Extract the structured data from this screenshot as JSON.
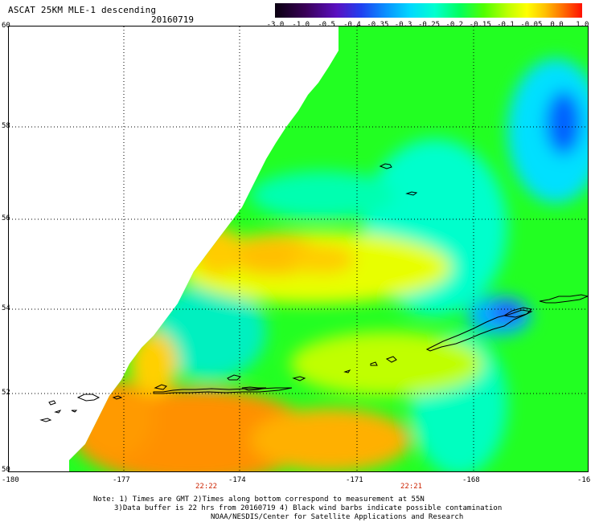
{
  "header": {
    "title": "ASCAT 25KM MLE-1 descending",
    "date": "20160719"
  },
  "colorbar": {
    "ticks": [
      "-3.0",
      "-1.0",
      "-0.5",
      "-0.4",
      "-0.35",
      "-0.3",
      "-0.25",
      "-0.2",
      "-0.15",
      "-0.1",
      "-0.05",
      "0.0",
      "1.0"
    ],
    "colors": [
      "#1a0020",
      "#3a0058",
      "#5a00a0",
      "#2a28e8",
      "#0a78ff",
      "#00c8ff",
      "#00ffe0",
      "#00ff70",
      "#40ff00",
      "#b0ff00",
      "#ffff00",
      "#ffb000",
      "#ff6000",
      "#ff0000"
    ]
  },
  "map": {
    "lat_labels": [
      "60",
      "58",
      "56",
      "54",
      "52",
      "50"
    ],
    "lon_labels": [
      "-180",
      "-177",
      "-174",
      "-171",
      "-168",
      "-16"
    ],
    "time_labels": [
      "22:22",
      "22:21"
    ]
  },
  "notes": {
    "line1": "Note: 1) Times are GMT 2)Times along bottom correspond to measurement at 55N",
    "line2": "3)Data buffer is 22 hrs from 20160719 4) Black wind barbs indicate possible contamination",
    "line3": "NOAA/NESDIS/Center for Satellite Applications and Research"
  }
}
